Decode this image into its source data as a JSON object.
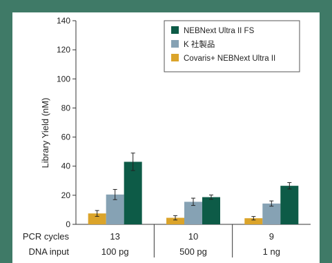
{
  "chart_data": {
    "type": "bar",
    "title": "",
    "xlabel": "",
    "ylabel": "Library Yield (nM)",
    "ylim": [
      0,
      140
    ],
    "yticks": [
      0,
      20,
      40,
      60,
      80,
      100,
      120,
      140
    ],
    "grid": false,
    "legend_position": "top-right",
    "row_labels": {
      "pcr": "PCR cycles",
      "dna": "DNA input"
    },
    "categories": [
      {
        "pcr_cycles": "13",
        "dna_input": "100 pg"
      },
      {
        "pcr_cycles": "10",
        "dna_input": "500 pg"
      },
      {
        "pcr_cycles": "9",
        "dna_input": "1 ng"
      }
    ],
    "series": [
      {
        "name": "Covaris+ NEBNext Ultra II",
        "color": "#dba42a",
        "values": [
          7.5,
          4.5,
          4.2
        ],
        "errors": [
          2.0,
          1.5,
          1.2
        ]
      },
      {
        "name": "K 社製品",
        "color": "#86a2b4",
        "values": [
          20.5,
          15.5,
          14.3
        ],
        "errors": [
          3.5,
          2.5,
          1.8
        ]
      },
      {
        "name": "NEBNext Ultra II FS",
        "color": "#0d5b47",
        "values": [
          43.0,
          18.7,
          26.5
        ],
        "errors": [
          6.0,
          1.5,
          2.2
        ]
      }
    ],
    "legend_order": [
      2,
      1,
      0
    ]
  }
}
